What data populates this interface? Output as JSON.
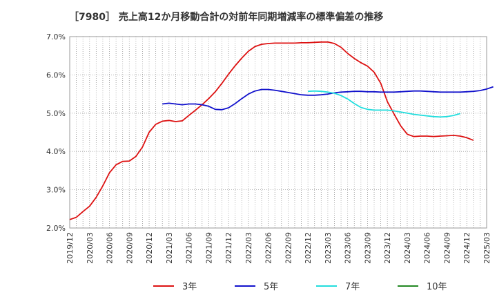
{
  "chart_data": {
    "type": "line",
    "title": "［7980］ 売上高12か月移動合計の対前年同期増減率の標準偏差の推移",
    "xlabel": "",
    "ylabel": "",
    "ylim": [
      2.0,
      7.0
    ],
    "y_ticks": [
      "2.0%",
      "3.0%",
      "4.0%",
      "5.0%",
      "6.0%",
      "7.0%"
    ],
    "x_ticks": [
      "2019/12",
      "2020/03",
      "2020/06",
      "2020/09",
      "2020/12",
      "2021/03",
      "2021/06",
      "2021/09",
      "2021/12",
      "2022/03",
      "2022/06",
      "2022/09",
      "2022/12",
      "2023/03",
      "2023/06",
      "2023/09",
      "2023/12",
      "2024/03",
      "2024/06",
      "2024/09",
      "2024/12",
      "2025/03"
    ],
    "grid": true,
    "legend_position": "bottom",
    "series": [
      {
        "name": "3年",
        "color": "#dd1111",
        "start": "2019/12",
        "values": [
          2.22,
          2.28,
          2.43,
          2.57,
          2.8,
          3.1,
          3.44,
          3.65,
          3.74,
          3.75,
          3.87,
          4.12,
          4.5,
          4.71,
          4.79,
          4.81,
          4.78,
          4.8,
          4.94,
          5.08,
          5.22,
          5.38,
          5.56,
          5.78,
          6.02,
          6.24,
          6.44,
          6.62,
          6.74,
          6.8,
          6.82,
          6.83,
          6.83,
          6.83,
          6.83,
          6.84,
          6.84,
          6.85,
          6.86,
          6.86,
          6.82,
          6.72,
          6.56,
          6.43,
          6.32,
          6.23,
          6.07,
          5.78,
          5.3,
          4.98,
          4.67,
          4.45,
          4.39,
          4.4,
          4.4,
          4.39,
          4.4,
          4.41,
          4.42,
          4.4,
          4.36,
          4.29
        ]
      },
      {
        "name": "5年",
        "color": "#1111cc",
        "start": "2021/02",
        "values": [
          5.24,
          5.26,
          5.24,
          5.22,
          5.24,
          5.24,
          5.22,
          5.18,
          5.1,
          5.09,
          5.14,
          5.25,
          5.38,
          5.5,
          5.58,
          5.62,
          5.62,
          5.6,
          5.57,
          5.54,
          5.51,
          5.48,
          5.47,
          5.47,
          5.48,
          5.5,
          5.53,
          5.55,
          5.56,
          5.57,
          5.57,
          5.56,
          5.56,
          5.55,
          5.55,
          5.55,
          5.56,
          5.57,
          5.58,
          5.58,
          5.57,
          5.56,
          5.55,
          5.55,
          5.55,
          5.55,
          5.56,
          5.57,
          5.59,
          5.63,
          5.69
        ]
      },
      {
        "name": "7年",
        "color": "#22dddd",
        "start": "2022/12",
        "values": [
          5.57,
          5.58,
          5.57,
          5.55,
          5.52,
          5.46,
          5.37,
          5.25,
          5.15,
          5.1,
          5.08,
          5.08,
          5.08,
          5.06,
          5.03,
          5.0,
          4.97,
          4.95,
          4.93,
          4.91,
          4.9,
          4.91,
          4.94,
          4.99
        ]
      },
      {
        "name": "10年",
        "color": "#228822",
        "start": "",
        "values": []
      }
    ]
  }
}
